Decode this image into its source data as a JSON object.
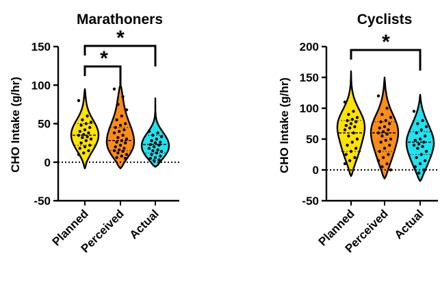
{
  "chart_data": [
    {
      "type": "violin",
      "title": "Marathoners",
      "ylabel": "CHO Intake (g/hr)",
      "xlabel": "",
      "ylim": [
        -50,
        150
      ],
      "yticks": [
        -50,
        0,
        50,
        100,
        150
      ],
      "zero_reference_line": true,
      "categories": [
        "Planned",
        "Perceived",
        "Actual"
      ],
      "colors": {
        "Planned": "#FFE300",
        "Perceived": "#FF8C14",
        "Actual": "#1EE3F0"
      },
      "series": [
        {
          "category": "Planned",
          "range": [
            -8,
            95
          ],
          "median": 35,
          "q1": 22,
          "q3": 50,
          "points": [
            80,
            60,
            55,
            52,
            50,
            48,
            45,
            42,
            40,
            38,
            36,
            35,
            33,
            32,
            30,
            28,
            25,
            22,
            20,
            18,
            15,
            12,
            10
          ]
        },
        {
          "category": "Perceived",
          "range": [
            -8,
            100
          ],
          "median": 28,
          "q1": 15,
          "q3": 45,
          "points": [
            95,
            85,
            75,
            68,
            60,
            55,
            50,
            48,
            45,
            42,
            40,
            38,
            35,
            32,
            30,
            28,
            26,
            25,
            22,
            20,
            18,
            16,
            15,
            14,
            12,
            10,
            8,
            6,
            5
          ]
        },
        {
          "category": "Actual",
          "range": [
            -6,
            83
          ],
          "median": 23,
          "q1": 12,
          "q3": 35,
          "points": [
            40,
            38,
            35,
            33,
            30,
            28,
            26,
            25,
            23,
            22,
            20,
            18,
            16,
            15,
            14,
            12,
            10,
            8,
            6,
            5,
            3,
            2
          ]
        }
      ],
      "significance": [
        {
          "pair": [
            "Planned",
            "Perceived"
          ],
          "label": "*"
        },
        {
          "pair": [
            "Planned",
            "Actual"
          ],
          "label": "*"
        }
      ]
    },
    {
      "type": "violin",
      "title": "Cyclists",
      "ylabel": "CHO Intake (g/hr)",
      "xlabel": "",
      "ylim": [
        -50,
        200
      ],
      "yticks": [
        -50,
        0,
        50,
        100,
        150,
        200
      ],
      "zero_reference_line": true,
      "categories": [
        "Planned",
        "Perceived",
        "Actual"
      ],
      "colors": {
        "Planned": "#FFE300",
        "Perceived": "#FF8C14",
        "Actual": "#1EE3F0"
      },
      "series": [
        {
          "category": "Planned",
          "range": [
            -10,
            160
          ],
          "median": 60,
          "q1": 30,
          "q3": 80,
          "points": [
            110,
            95,
            90,
            85,
            82,
            80,
            78,
            75,
            72,
            70,
            68,
            65,
            60,
            55,
            50,
            45,
            40,
            35,
            30,
            25,
            20,
            15,
            10
          ]
        },
        {
          "category": "Perceived",
          "range": [
            -14,
            150
          ],
          "median": 60,
          "q1": 30,
          "q3": 78,
          "points": [
            120,
            100,
            90,
            85,
            80,
            78,
            75,
            70,
            68,
            65,
            62,
            60,
            58,
            55,
            50,
            48,
            45,
            40,
            35,
            30,
            25,
            20,
            15,
            10,
            5,
            0
          ]
        },
        {
          "category": "Actual",
          "range": [
            -18,
            122
          ],
          "median": 45,
          "q1": 25,
          "q3": 62,
          "points": [
            95,
            80,
            75,
            70,
            65,
            60,
            55,
            50,
            48,
            45,
            42,
            40,
            38,
            35,
            30,
            25,
            20,
            15,
            10,
            5,
            0,
            -5
          ]
        }
      ],
      "significance": [
        {
          "pair": [
            "Planned",
            "Actual"
          ],
          "label": "*"
        }
      ]
    }
  ]
}
